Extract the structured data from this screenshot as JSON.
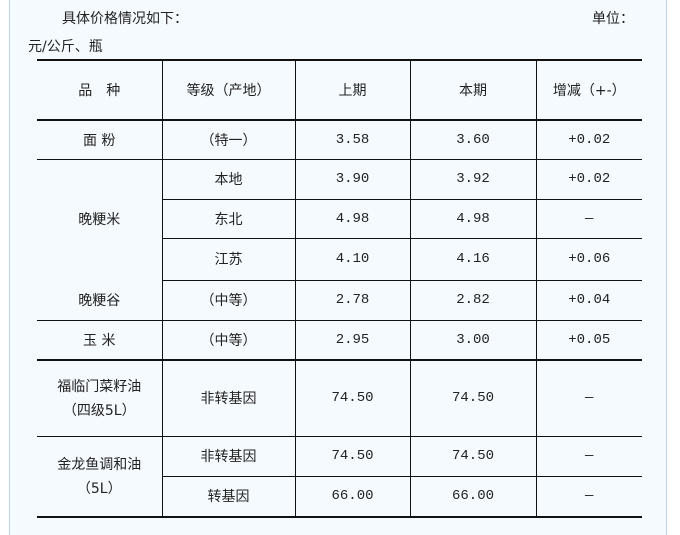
{
  "intro": "具体价格情况如下：",
  "unit_label": "单位：",
  "unit_value": "元/公斤、瓶",
  "headers": [
    "品　种",
    "等级（产地）",
    "上期",
    "本期",
    "增减（+-）"
  ],
  "rows": {
    "flour": {
      "name": "面 粉",
      "grade": "（特一）",
      "prev": "3.58",
      "curr": "3.60",
      "diff": "+0.02"
    },
    "rice_group": "晚粳米",
    "rice_local": {
      "grade": "本地",
      "prev": "3.90",
      "curr": "3.92",
      "diff": "+0.02"
    },
    "rice_ne": {
      "grade": "东北",
      "prev": "4.98",
      "curr": "4.98",
      "diff": "—"
    },
    "rice_js": {
      "grade": "江苏",
      "prev": "4.10",
      "curr": "4.16",
      "diff": "+0.06"
    },
    "paddy": {
      "name": "晚粳谷",
      "grade": "（中等）",
      "prev": "2.78",
      "curr": "2.82",
      "diff": "+0.04"
    },
    "corn": {
      "name": "玉 米",
      "grade": "（中等）",
      "prev": "2.95",
      "curr": "3.00",
      "diff": "+0.05"
    },
    "fulinmen": {
      "name": "福临门菜籽油",
      "name2": "（四级5L）",
      "grade": "非转基因",
      "prev": "74.50",
      "curr": "74.50",
      "diff": "—"
    },
    "jinlongyu": {
      "name": "金龙鱼调和油",
      "name2": "（5L）"
    },
    "jly_non": {
      "grade": "非转基因",
      "prev": "74.50",
      "curr": "74.50",
      "diff": "—"
    },
    "jly_gmo": {
      "grade": "转基因",
      "prev": "66.00",
      "curr": "66.00",
      "diff": "—"
    }
  }
}
